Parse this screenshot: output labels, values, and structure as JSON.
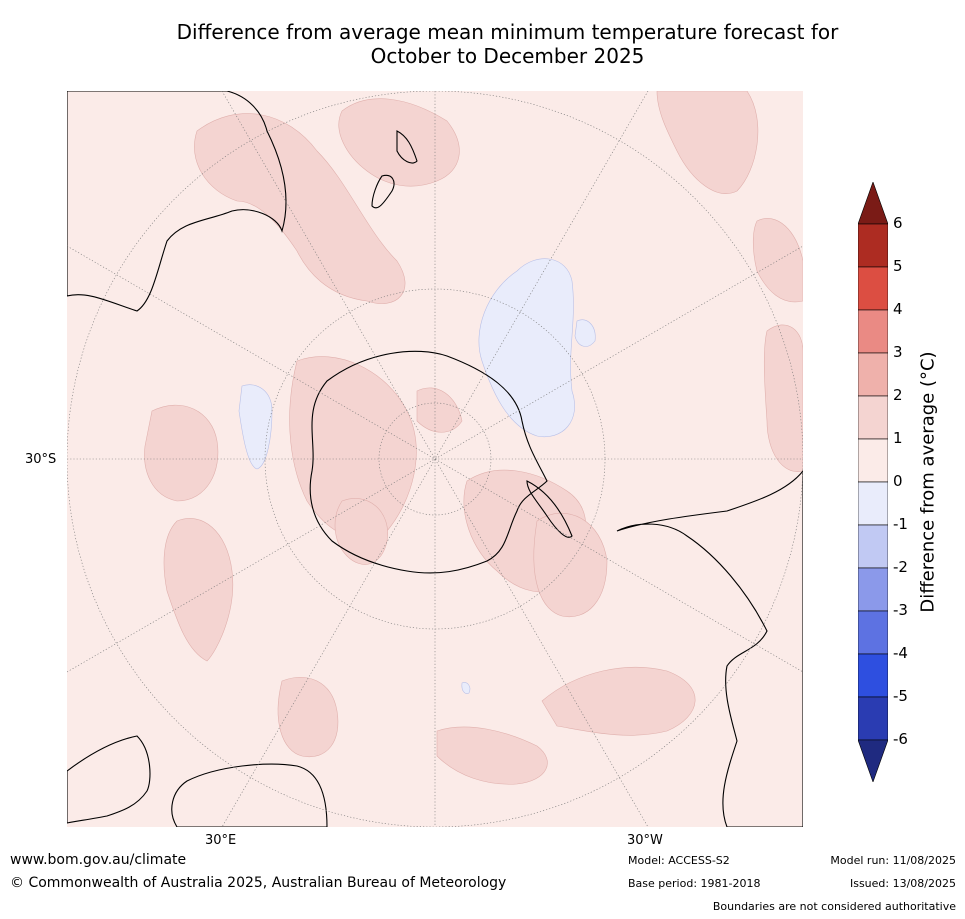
{
  "title": {
    "line1": "Difference from average mean minimum temperature forecast for",
    "line2": "October to December 2025"
  },
  "map": {
    "projection": "south-polar-stereographic",
    "lat_label": "30°S",
    "lon_labels": {
      "east": "30°E",
      "west": "30°W"
    },
    "colors": {
      "background_anomaly_0_1": "#fbebe8",
      "anomaly_1_2": "#f4d4d1",
      "anomaly_minus1_0": "#e9ecfb",
      "land_outline": "#000000",
      "graticule": "#777777"
    }
  },
  "colorbar": {
    "title": "Difference from average (°C)",
    "ticks": [
      "6",
      "5",
      "4",
      "3",
      "2",
      "1",
      "0",
      "-1",
      "-2",
      "-3",
      "-4",
      "-5",
      "-6"
    ],
    "colors": [
      "#7a1b16",
      "#ad2c22",
      "#dc4e42",
      "#ea8a84",
      "#efb1ab",
      "#f4d4d1",
      "#fbebe8",
      "#e9ecfb",
      "#c1c9f3",
      "#8b99ea",
      "#5d72e2",
      "#2e4fe0",
      "#2a3cb2",
      "#1f2a80"
    ]
  },
  "footer": {
    "url": "www.bom.gov.au/climate",
    "copyright": "© Commonwealth of Australia 2025, Australian Bureau of Meteorology",
    "model": "Model: ACCESS-S2",
    "base_period": "Base period: 1981-2018",
    "model_run": "Model run: 11/08/2025",
    "issued": "Issued: 13/08/2025",
    "disclaimer": "Boundaries are not considered authoritative"
  }
}
